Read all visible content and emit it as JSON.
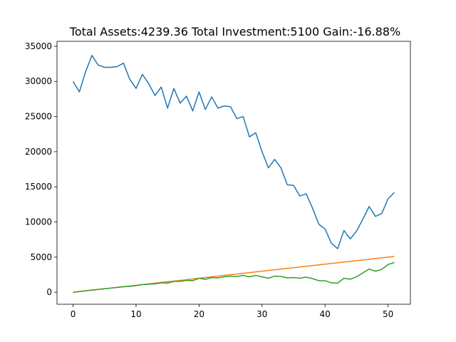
{
  "chart_data": {
    "type": "line",
    "title": "Total Assets:4239.36  Total Investment:5100  Gain:-16.88%",
    "xlabel": "",
    "ylabel": "",
    "xlim": [
      -2.55,
      53.55
    ],
    "ylim": [
      -1700,
      35700
    ],
    "grid": false,
    "x_ticks": [
      0,
      10,
      20,
      30,
      40,
      50
    ],
    "y_ticks": [
      0,
      5000,
      10000,
      15000,
      20000,
      25000,
      30000,
      35000
    ],
    "x": [
      0,
      1,
      2,
      3,
      4,
      5,
      6,
      7,
      8,
      9,
      10,
      11,
      12,
      13,
      14,
      15,
      16,
      17,
      18,
      19,
      20,
      21,
      22,
      23,
      24,
      25,
      26,
      27,
      28,
      29,
      30,
      31,
      32,
      33,
      34,
      35,
      36,
      37,
      38,
      39,
      40,
      41,
      42,
      43,
      44,
      45,
      46,
      47,
      48,
      49,
      50,
      51
    ],
    "series": [
      {
        "color": "#1f77b4",
        "values": [
          30000,
          28500,
          31400,
          33700,
          32300,
          32000,
          32000,
          32100,
          32600,
          30300,
          29000,
          31000,
          29700,
          28000,
          29200,
          26200,
          29000,
          26900,
          27900,
          25800,
          28500,
          26000,
          27800,
          26200,
          26500,
          26400,
          24700,
          25000,
          22100,
          22700,
          20000,
          17700,
          18900,
          17700,
          15300,
          15200,
          13700,
          14000,
          12000,
          9700,
          9000,
          7000,
          6200,
          8800,
          7600,
          8700,
          10400,
          12200,
          10800,
          11200,
          13300,
          14200
        ]
      },
      {
        "color": "#ff7f0e",
        "values": [
          0,
          100,
          200,
          300,
          400,
          500,
          600,
          700,
          800,
          900,
          1000,
          1100,
          1200,
          1300,
          1400,
          1500,
          1600,
          1700,
          1800,
          1900,
          2000,
          2100,
          2200,
          2300,
          2400,
          2500,
          2600,
          2700,
          2800,
          2900,
          3000,
          3100,
          3200,
          3300,
          3400,
          3500,
          3600,
          3700,
          3800,
          3900,
          4000,
          4100,
          4200,
          4300,
          4400,
          4500,
          4600,
          4700,
          4800,
          4900,
          5000,
          5100
        ]
      },
      {
        "color": "#2ca02c",
        "values": [
          0,
          100,
          220,
          330,
          400,
          500,
          600,
          700,
          800,
          850,
          950,
          1100,
          1150,
          1200,
          1350,
          1300,
          1550,
          1550,
          1700,
          1650,
          2000,
          1850,
          2100,
          2050,
          2200,
          2300,
          2250,
          2400,
          2200,
          2400,
          2200,
          2000,
          2300,
          2250,
          2050,
          2100,
          2000,
          2150,
          1950,
          1650,
          1650,
          1350,
          1300,
          2000,
          1850,
          2200,
          2750,
          3300,
          3000,
          3250,
          3950,
          4239
        ]
      }
    ]
  }
}
